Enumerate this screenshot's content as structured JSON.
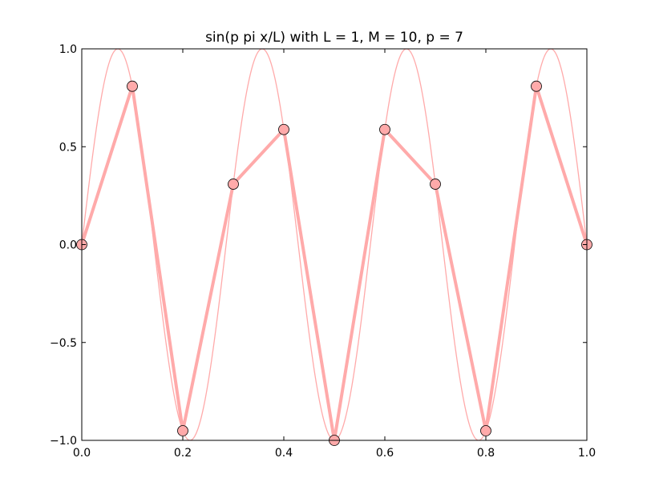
{
  "chart_data": {
    "type": "line",
    "title": "sin(p pi x/L) with L = 1, M = 10, p = 7",
    "xlabel": "",
    "ylabel": "",
    "xlim": [
      0.0,
      1.0
    ],
    "ylim": [
      -1.0,
      1.0
    ],
    "grid": false,
    "x_ticks": [
      {
        "value": 0.0,
        "label": "0.0"
      },
      {
        "value": 0.2,
        "label": "0.2"
      },
      {
        "value": 0.4,
        "label": "0.4"
      },
      {
        "value": 0.6,
        "label": "0.6"
      },
      {
        "value": 0.8,
        "label": "0.8"
      },
      {
        "value": 1.0,
        "label": "1.0"
      }
    ],
    "y_ticks": [
      {
        "value": -1.0,
        "label": "−1.0"
      },
      {
        "value": -0.5,
        "label": "−0.5"
      },
      {
        "value": 0.0,
        "label": "0.0"
      },
      {
        "value": 0.5,
        "label": "0.5"
      },
      {
        "value": 1.0,
        "label": "1.0"
      }
    ],
    "series": [
      {
        "style": "thin-curve",
        "color": "#ffaaaa",
        "function": "sin(7*pi*x)",
        "p": 7,
        "L": 1
      },
      {
        "style": "thick-line-with-markers",
        "color": "#ffaaaa",
        "marker_color": "#ffaaaa",
        "marker_edge": "#000000",
        "x": [
          0.0,
          0.1,
          0.2,
          0.3,
          0.4,
          0.5,
          0.6,
          0.7,
          0.8,
          0.9,
          1.0
        ],
        "y": [
          0.0,
          0.809,
          -0.951,
          0.309,
          0.588,
          -1.0,
          0.588,
          0.309,
          -0.951,
          0.809,
          0.0
        ]
      }
    ]
  }
}
